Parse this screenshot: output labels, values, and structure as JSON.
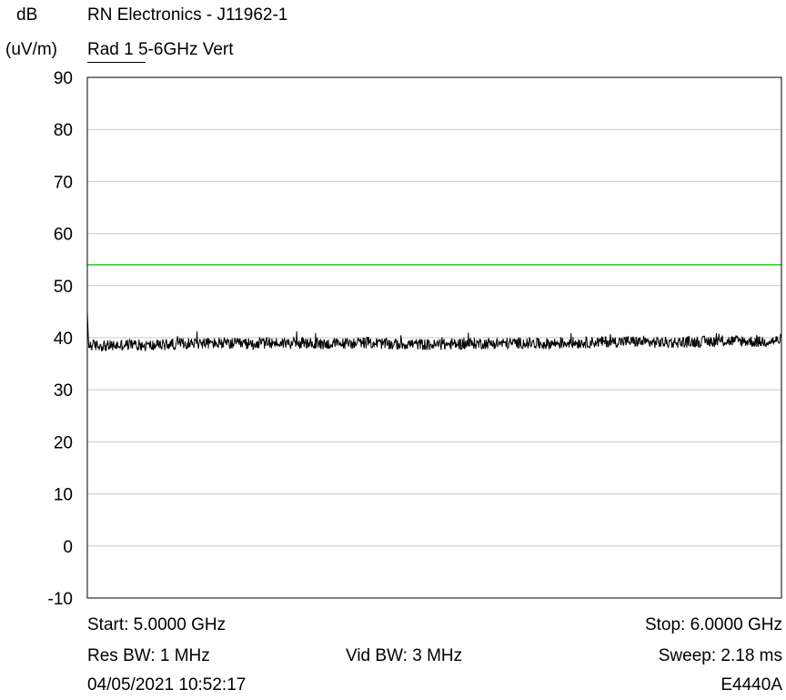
{
  "header": {
    "y_unit_line1": "dB",
    "y_unit_line2": "(uV/m)",
    "title": "RN Electronics - J11962-1",
    "subtitle": "Rad 1 5-6GHz Vert"
  },
  "footer": {
    "start": "Start: 5.0000 GHz",
    "stop": "Stop: 6.0000 GHz",
    "res_bw": "Res BW: 1 MHz",
    "vid_bw": "Vid BW: 3 MHz",
    "sweep": "Sweep: 2.18 ms",
    "datetime": "04/05/2021 10:52:17",
    "model": "E4440A"
  },
  "chart_data": {
    "type": "line",
    "title": "RN Electronics - J11962-1",
    "subtitle": "Rad 1 5-6GHz Vert",
    "xlabel": "",
    "ylabel": "dB (uV/m)",
    "xlim": [
      5.0,
      6.0
    ],
    "ylim": [
      -10,
      90
    ],
    "yticks": [
      "90",
      "80",
      "70",
      "60",
      "50",
      "40",
      "30",
      "20",
      "10",
      "0",
      "-10"
    ],
    "grid": true,
    "limit_line": {
      "value": 54,
      "color": "#22cc22"
    },
    "trace": {
      "color": "#000000",
      "x_start": 5.0,
      "x_stop": 6.0,
      "start_peak": 45,
      "values": [
        38.6,
        38.4,
        38.7,
        38.5,
        38.8,
        39.0,
        38.9,
        38.8,
        38.9,
        39.0,
        38.9,
        38.8,
        38.9,
        39.1,
        38.7,
        38.8,
        38.6,
        38.8,
        38.9,
        38.9,
        39.0,
        38.8,
        39.0,
        39.1,
        39.2,
        39.3,
        39.1,
        39.1,
        39.2,
        39.3,
        39.4,
        39.2,
        39.5
      ]
    }
  }
}
